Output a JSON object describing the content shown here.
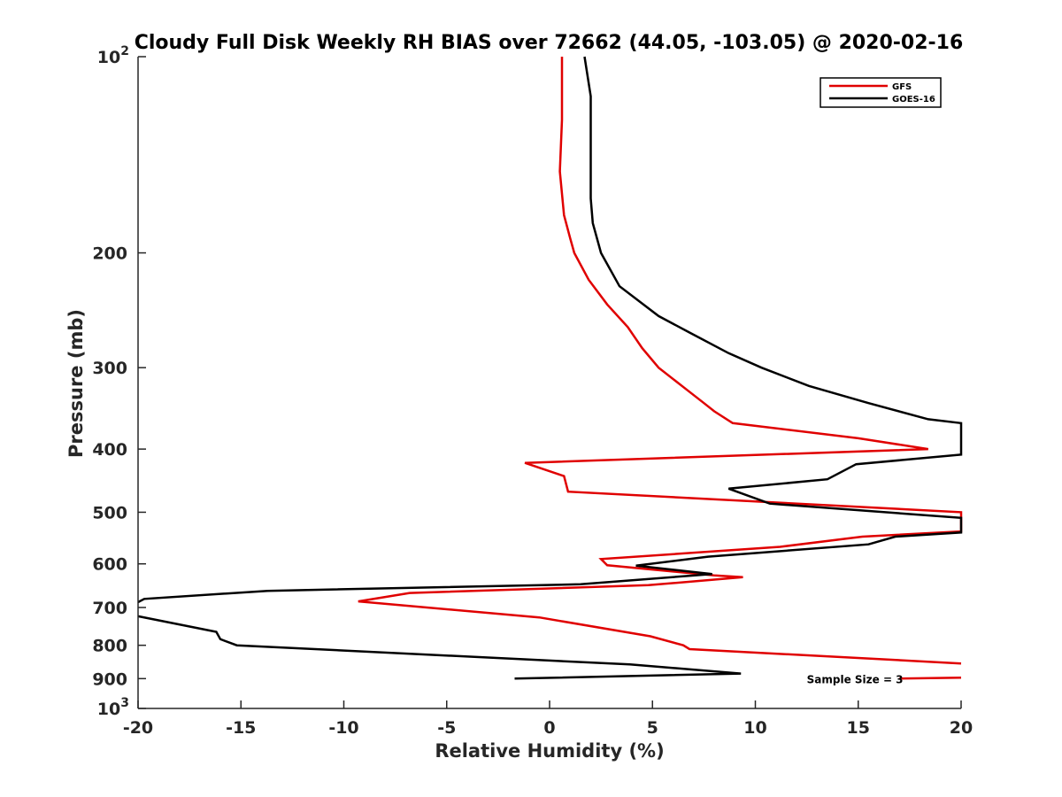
{
  "chart_data": {
    "type": "line",
    "title": "Cloudy Full Disk Weekly RH BIAS over 72662 (44.05, -103.05) @ 2020-02-16",
    "xlabel": "Relative Humidity (%)",
    "ylabel": "Pressure (mb)",
    "xlim": [
      -20,
      20
    ],
    "ylim": [
      100,
      1000
    ],
    "yscale": "log",
    "y_reversed": true,
    "grid": false,
    "legend_position": "top-right",
    "xticks": [
      "-20",
      "-15",
      "-10",
      "-5",
      "0",
      "5",
      "10",
      "15",
      "20"
    ],
    "yticks": [
      {
        "value": 100,
        "base": "10",
        "exp": "2"
      },
      {
        "value": 200,
        "label": "200"
      },
      {
        "value": 300,
        "label": "300"
      },
      {
        "value": 400,
        "label": "400"
      },
      {
        "value": 500,
        "label": "500"
      },
      {
        "value": 600,
        "label": "600"
      },
      {
        "value": 700,
        "label": "700"
      },
      {
        "value": 800,
        "label": "800"
      },
      {
        "value": 900,
        "label": "900"
      },
      {
        "value": 1000,
        "base": "10",
        "exp": "3"
      }
    ],
    "series": [
      {
        "name": "GFS",
        "color": "#e00000",
        "points": [
          [
            0.6,
            100
          ],
          [
            0.6,
            125
          ],
          [
            0.5,
            150
          ],
          [
            0.7,
            175
          ],
          [
            1.0,
            190
          ],
          [
            1.2,
            200
          ],
          [
            1.9,
            220
          ],
          [
            2.8,
            240
          ],
          [
            3.8,
            260
          ],
          [
            4.5,
            280
          ],
          [
            5.3,
            300
          ],
          [
            6.7,
            325
          ],
          [
            7.5,
            340
          ],
          [
            8.0,
            350
          ],
          [
            8.9,
            365
          ],
          [
            15.0,
            385
          ],
          [
            18.4,
            400
          ],
          [
            -1.2,
            420
          ],
          [
            0.7,
            440
          ],
          [
            0.9,
            465
          ],
          [
            20,
            500
          ],
          [
            20,
            535
          ],
          [
            15.2,
            545
          ],
          [
            11.2,
            565
          ],
          [
            2.5,
            590
          ],
          [
            2.8,
            603
          ],
          [
            8.0,
            625
          ],
          [
            9.4,
            629
          ],
          [
            4.8,
            647
          ],
          [
            -6.8,
            665
          ],
          [
            -9.3,
            685
          ],
          [
            -0.5,
            725
          ],
          [
            4.9,
            775
          ],
          [
            6.5,
            800
          ],
          [
            6.8,
            811
          ],
          [
            20,
            853
          ]
        ],
        "segment2": [
          [
            17.0,
            900
          ],
          [
            20,
            897
          ]
        ]
      },
      {
        "name": "GOES-16",
        "color": "#000000",
        "points": [
          [
            1.7,
            100
          ],
          [
            2.0,
            115
          ],
          [
            2.0,
            150
          ],
          [
            2.0,
            165
          ],
          [
            2.1,
            180
          ],
          [
            2.5,
            200
          ],
          [
            3.4,
            225
          ],
          [
            5.3,
            250
          ],
          [
            6.8,
            265
          ],
          [
            8.7,
            285
          ],
          [
            10.3,
            300
          ],
          [
            12.6,
            320
          ],
          [
            15.5,
            340
          ],
          [
            18.4,
            360
          ],
          [
            20,
            365
          ],
          [
            20,
            408
          ],
          [
            14.9,
            422
          ],
          [
            13.5,
            445
          ],
          [
            8.7,
            460
          ],
          [
            10.7,
            485
          ],
          [
            20,
            510
          ],
          [
            20,
            537
          ],
          [
            16.8,
            545
          ],
          [
            15.5,
            560
          ],
          [
            7.7,
            585
          ],
          [
            4.2,
            604
          ],
          [
            7.9,
            622
          ],
          [
            1.5,
            645
          ],
          [
            -13.7,
            660
          ],
          [
            -19.7,
            679
          ],
          [
            -20,
            687
          ]
        ],
        "segment2": [
          [
            -20,
            722
          ],
          [
            -16.2,
            763
          ],
          [
            -16.0,
            783
          ],
          [
            -15.2,
            800
          ],
          [
            3.9,
            856
          ],
          [
            9.3,
            884
          ],
          [
            -1.7,
            900
          ]
        ]
      }
    ],
    "annotations": [
      {
        "text": "Sample Size = 3",
        "x": 12.5,
        "y": 900
      }
    ]
  }
}
